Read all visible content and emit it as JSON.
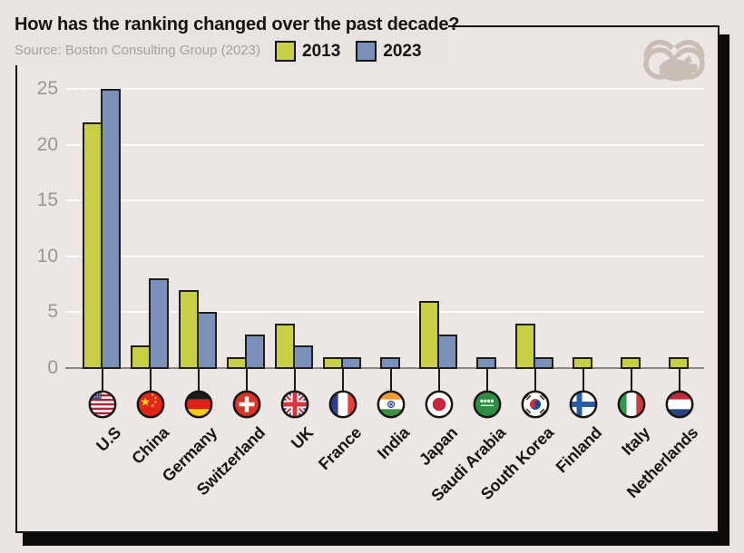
{
  "header": {
    "title": "How has the ranking changed over the past decade?",
    "source": "Source: Boston Consulting Group (2023)",
    "logo_name": "binoculars-piggybank-logo"
  },
  "legend": {
    "items": [
      {
        "label": "2013",
        "color": "#c9cf45"
      },
      {
        "label": "2023",
        "color": "#7b90b8"
      }
    ]
  },
  "colors": {
    "background": "#e9e4e1",
    "card_background": "#ece7e4",
    "bar_outline": "#201d1a",
    "grid_line": "#fdfcfb",
    "zero_line": "#8b8683",
    "tick_text": "#9b9593",
    "shadow": "#0c0c0c",
    "logo": "#cabdb6"
  },
  "chart_data": {
    "type": "bar",
    "title": "How has the ranking changed over the past decade?",
    "xlabel": "",
    "ylabel": "",
    "categories": [
      "U.S",
      "China",
      "Germany",
      "Switzerland",
      "UK",
      "France",
      "India",
      "Japan",
      "Saudi Arabia",
      "South Korea",
      "Finland",
      "Italy",
      "Netherlands"
    ],
    "flags": [
      "us",
      "cn",
      "de",
      "ch",
      "gb",
      "fr",
      "in",
      "jp",
      "sa",
      "kr",
      "fi",
      "it",
      "nl"
    ],
    "series": [
      {
        "name": "2013",
        "color": "#c9cf45",
        "values": [
          22,
          2,
          7,
          1,
          4,
          1,
          0,
          6,
          0,
          4,
          1,
          1,
          1
        ]
      },
      {
        "name": "2023",
        "color": "#7b90b8",
        "values": [
          25,
          8,
          5,
          3,
          2,
          1,
          1,
          3,
          1,
          1,
          0,
          0,
          0
        ]
      }
    ],
    "yticks": [
      0,
      5,
      10,
      15,
      20,
      25
    ],
    "ylim": [
      0,
      25
    ],
    "grid": true,
    "legend_position": "top"
  }
}
